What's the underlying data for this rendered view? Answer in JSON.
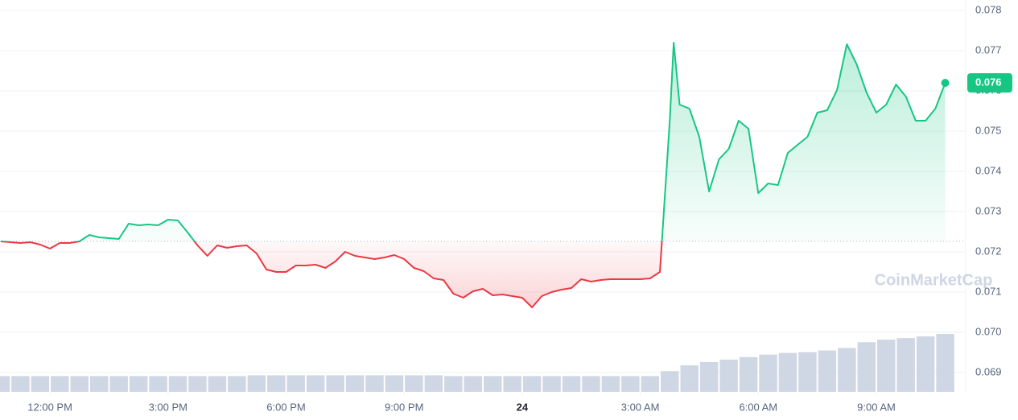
{
  "chart_data": {
    "type": "line",
    "x": [
      10.75,
      11,
      11.25,
      11.5,
      11.75,
      12,
      12.25,
      12.5,
      12.75,
      13,
      13.25,
      13.5,
      13.75,
      14,
      14.25,
      14.5,
      14.75,
      15,
      15.25,
      15.5,
      15.75,
      16,
      16.25,
      16.5,
      16.75,
      17,
      17.25,
      17.5,
      17.75,
      18,
      18.25,
      18.5,
      18.75,
      19,
      19.25,
      19.5,
      19.75,
      20,
      20.25,
      20.5,
      20.75,
      21,
      21.25,
      21.5,
      21.75,
      22,
      22.25,
      22.5,
      22.75,
      23,
      23.25,
      23.5,
      23.75,
      24,
      24.25,
      24.5,
      24.75,
      25,
      25.25,
      25.5,
      25.75,
      26,
      26.25,
      26.5,
      26.75,
      27,
      27.25,
      27.5,
      27.75,
      27.85,
      28,
      28.25,
      28.5,
      28.75,
      29,
      29.25,
      29.5,
      29.75,
      30,
      30.25,
      30.5,
      30.75,
      31,
      31.25,
      31.5,
      31.75,
      32,
      32.25,
      32.5,
      32.75,
      33,
      33.25,
      33.5,
      33.75,
      34,
      34.25,
      34.5,
      34.75
    ],
    "values": [
      0.07226,
      0.07224,
      0.07222,
      0.07224,
      0.07218,
      0.07208,
      0.07222,
      0.07222,
      0.07226,
      0.07242,
      0.07236,
      0.07234,
      0.07232,
      0.0727,
      0.07266,
      0.07268,
      0.07266,
      0.0728,
      0.07278,
      0.07248,
      0.07216,
      0.0719,
      0.07216,
      0.0721,
      0.07214,
      0.07216,
      0.07196,
      0.07156,
      0.0715,
      0.0715,
      0.07166,
      0.07166,
      0.07168,
      0.0716,
      0.07176,
      0.072,
      0.0719,
      0.07186,
      0.07182,
      0.07186,
      0.07192,
      0.07182,
      0.0716,
      0.07152,
      0.07134,
      0.0713,
      0.07096,
      0.07086,
      0.07102,
      0.07108,
      0.07092,
      0.07094,
      0.0709,
      0.07086,
      0.07062,
      0.0709,
      0.071,
      0.07106,
      0.0711,
      0.07132,
      0.07126,
      0.0713,
      0.07132,
      0.07132,
      0.07132,
      0.07132,
      0.07134,
      0.0715,
      0.07526,
      0.0772,
      0.07566,
      0.07556,
      0.07486,
      0.0735,
      0.0743,
      0.07456,
      0.07526,
      0.07506,
      0.07346,
      0.0737,
      0.07366,
      0.07446,
      0.07466,
      0.07486,
      0.07546,
      0.07552,
      0.07602,
      0.07716,
      0.07666,
      0.07596,
      0.07546,
      0.07566,
      0.07616,
      0.07586,
      0.07526,
      0.07526,
      0.07556,
      0.0762
    ],
    "baseline": 0.07226,
    "up_color": "#16c784",
    "down_color": "#ea3943",
    "price_label": "0.076",
    "xlim": [
      10.73,
      35.27
    ],
    "xticks": [
      {
        "value": 12,
        "label": "12:00 PM"
      },
      {
        "value": 15,
        "label": "3:00 PM"
      },
      {
        "value": 18,
        "label": "6:00 PM"
      },
      {
        "value": 21,
        "label": "9:00 PM"
      },
      {
        "value": 24,
        "label": "24"
      },
      {
        "value": 27,
        "label": "3:00 AM"
      },
      {
        "value": 30,
        "label": "6:00 AM"
      },
      {
        "value": 33,
        "label": "9:00 AM"
      }
    ],
    "ylim": [
      0.06852,
      0.07826
    ],
    "yticks": [
      0.069,
      {
        "value": 0.07,
        "label": "0.070"
      },
      0.071,
      0.072,
      0.073,
      0.074,
      0.075,
      0.076,
      0.077,
      0.078
    ],
    "grid": true,
    "volume": {
      "color": "#cfd6e4",
      "x": [
        10.75,
        11.25,
        11.75,
        12.25,
        12.75,
        13.25,
        13.75,
        14.25,
        14.75,
        15.25,
        15.75,
        16.25,
        16.75,
        17.25,
        17.75,
        18.25,
        18.75,
        19.25,
        19.75,
        20.25,
        20.75,
        21.25,
        21.75,
        22.25,
        22.75,
        23.25,
        23.75,
        24.25,
        24.75,
        25.25,
        25.75,
        26.25,
        26.75,
        27.25,
        27.75,
        28.25,
        28.75,
        29.25,
        29.75,
        30.25,
        30.75,
        31.25,
        31.75,
        32.25,
        32.75,
        33.25,
        33.75,
        34.25,
        34.75
      ],
      "values": [
        19,
        19,
        19,
        19,
        19,
        19,
        19,
        19,
        19,
        19,
        19,
        19,
        19,
        20,
        20,
        20,
        20,
        20,
        20,
        20,
        20,
        20,
        20,
        19,
        19,
        19,
        19,
        19,
        19,
        19,
        19,
        19,
        19,
        19,
        25,
        32,
        36,
        39,
        42,
        45,
        47,
        48,
        50,
        53,
        60,
        63,
        65,
        67,
        70
      ]
    },
    "watermark": "CoinMarketCap"
  }
}
